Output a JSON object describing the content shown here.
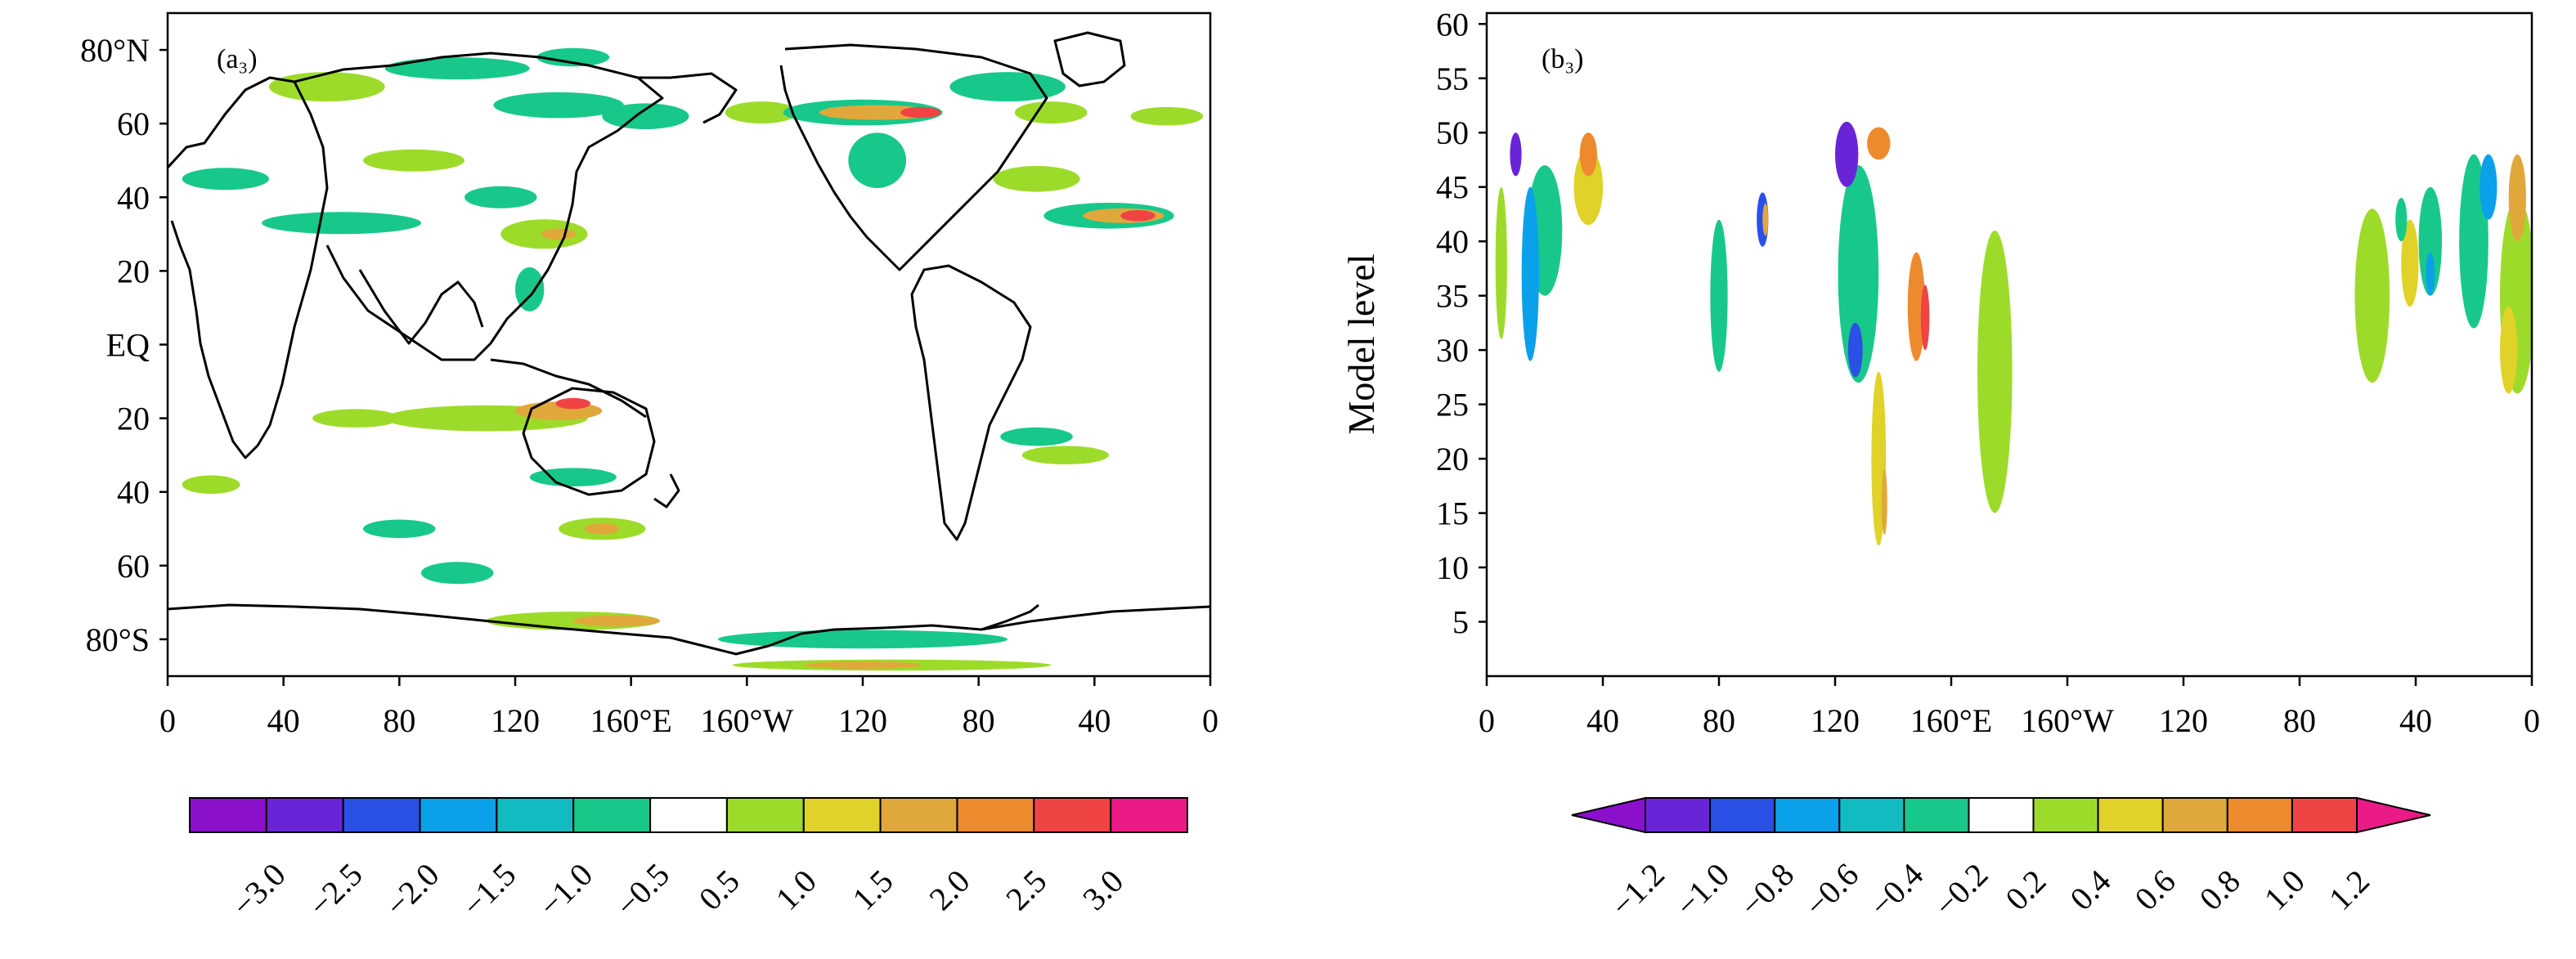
{
  "chart_data": [
    {
      "type": "heatmap",
      "panel_label": "(a₃)",
      "x_ticks": [
        "0",
        "40",
        "80",
        "120",
        "160°E",
        "160°W",
        "120",
        "80",
        "40",
        "0"
      ],
      "y_ticks": [
        "80°N",
        "60",
        "40",
        "20",
        "EQ",
        "20",
        "40",
        "60",
        "80°S"
      ],
      "xlim": [
        0,
        360
      ],
      "ylim": [
        -90,
        90
      ],
      "colorbar": {
        "ticks": [
          "−3.0",
          "−2.5",
          "−2.0",
          "−1.5",
          "−1.0",
          "−0.5",
          "0.5",
          "1.0",
          "1.5",
          "2.0",
          "2.5",
          "3.0"
        ],
        "colors": [
          "#8a10cc",
          "#6a24d8",
          "#2a50e6",
          "#0aa0ea",
          "#10bcc2",
          "#18c88a",
          "#ffffff",
          "#9ddb2a",
          "#e0d228",
          "#e0a83a",
          "#ee8a2e",
          "#f04444",
          "#ea1a86"
        ],
        "extend": "neither"
      },
      "blobs": [
        {
          "lon": 55,
          "lat": 70,
          "w": 40,
          "h": 8,
          "v": 0.9
        },
        {
          "lon": 100,
          "lat": 75,
          "w": 50,
          "h": 6,
          "v": -0.7
        },
        {
          "lon": 140,
          "lat": 78,
          "w": 25,
          "h": 5,
          "v": -0.7
        },
        {
          "lon": 135,
          "lat": 65,
          "w": 45,
          "h": 7,
          "v": -0.8
        },
        {
          "lon": 165,
          "lat": 62,
          "w": 30,
          "h": 7,
          "v": -0.7
        },
        {
          "lon": 205,
          "lat": 63,
          "w": 25,
          "h": 6,
          "v": 0.7
        },
        {
          "lon": 240,
          "lat": 63,
          "w": 55,
          "h": 7,
          "v": -0.7
        },
        {
          "lon": 245,
          "lat": 63,
          "w": 40,
          "h": 4,
          "v": 2.0
        },
        {
          "lon": 260,
          "lat": 63,
          "w": 14,
          "h": 3,
          "v": 2.6
        },
        {
          "lon": 232,
          "lat": 63,
          "w": 12,
          "h": 3,
          "v": 1.8
        },
        {
          "lon": 290,
          "lat": 70,
          "w": 40,
          "h": 8,
          "v": -0.8
        },
        {
          "lon": 305,
          "lat": 63,
          "w": 25,
          "h": 6,
          "v": 0.8
        },
        {
          "lon": 345,
          "lat": 62,
          "w": 25,
          "h": 5,
          "v": 0.7
        },
        {
          "lon": 20,
          "lat": 45,
          "w": 30,
          "h": 6,
          "v": -0.7
        },
        {
          "lon": 85,
          "lat": 50,
          "w": 35,
          "h": 6,
          "v": 0.8
        },
        {
          "lon": 60,
          "lat": 33,
          "w": 55,
          "h": 6,
          "v": -0.7
        },
        {
          "lon": 115,
          "lat": 40,
          "w": 25,
          "h": 6,
          "v": -0.7
        },
        {
          "lon": 130,
          "lat": 30,
          "w": 30,
          "h": 8,
          "v": 0.8
        },
        {
          "lon": 135,
          "lat": 30,
          "w": 12,
          "h": 3,
          "v": 2.0
        },
        {
          "lon": 125,
          "lat": 15,
          "w": 10,
          "h": 12,
          "v": -0.8
        },
        {
          "lon": 245,
          "lat": 50,
          "w": 20,
          "h": 15,
          "v": -0.7
        },
        {
          "lon": 300,
          "lat": 45,
          "w": 30,
          "h": 7,
          "v": 0.7
        },
        {
          "lon": 325,
          "lat": 35,
          "w": 45,
          "h": 7,
          "v": -0.8
        },
        {
          "lon": 330,
          "lat": 35,
          "w": 28,
          "h": 4,
          "v": 1.8
        },
        {
          "lon": 335,
          "lat": 35,
          "w": 12,
          "h": 3,
          "v": 2.6
        },
        {
          "lon": 65,
          "lat": -20,
          "w": 30,
          "h": 5,
          "v": 0.8
        },
        {
          "lon": 110,
          "lat": -20,
          "w": 70,
          "h": 7,
          "v": 0.9
        },
        {
          "lon": 135,
          "lat": -18,
          "w": 30,
          "h": 5,
          "v": 1.8
        },
        {
          "lon": 140,
          "lat": -16,
          "w": 12,
          "h": 3,
          "v": 2.8
        },
        {
          "lon": 140,
          "lat": -36,
          "w": 30,
          "h": 5,
          "v": -0.7
        },
        {
          "lon": 150,
          "lat": -50,
          "w": 30,
          "h": 6,
          "v": 0.8
        },
        {
          "lon": 150,
          "lat": -50,
          "w": 12,
          "h": 3,
          "v": 1.7
        },
        {
          "lon": 80,
          "lat": -50,
          "w": 25,
          "h": 5,
          "v": -0.7
        },
        {
          "lon": 100,
          "lat": -62,
          "w": 25,
          "h": 6,
          "v": -0.7
        },
        {
          "lon": 300,
          "lat": -25,
          "w": 25,
          "h": 5,
          "v": -0.7
        },
        {
          "lon": 310,
          "lat": -30,
          "w": 30,
          "h": 5,
          "v": 0.7
        },
        {
          "lon": 15,
          "lat": -38,
          "w": 20,
          "h": 5,
          "v": 0.7
        },
        {
          "lon": 140,
          "lat": -75,
          "w": 60,
          "h": 5,
          "v": 0.8
        },
        {
          "lon": 155,
          "lat": -75,
          "w": 30,
          "h": 3,
          "v": 1.7
        },
        {
          "lon": 240,
          "lat": -80,
          "w": 100,
          "h": 5,
          "v": -0.7
        },
        {
          "lon": 250,
          "lat": -87,
          "w": 110,
          "h": 3,
          "v": 0.7
        },
        {
          "lon": 240,
          "lat": -87,
          "w": 40,
          "h": 2,
          "v": 1.6
        }
      ]
    },
    {
      "type": "heatmap",
      "panel_label": "(b₃)",
      "x_ticks": [
        "0",
        "40",
        "80",
        "120",
        "160°E",
        "160°W",
        "120",
        "80",
        "40",
        "0"
      ],
      "y_ticks": [
        "60",
        "55",
        "50",
        "45",
        "40",
        "35",
        "30",
        "25",
        "20",
        "15",
        "10",
        "5"
      ],
      "ylabel": "Model level",
      "xlim": [
        0,
        360
      ],
      "ylim": [
        0,
        61
      ],
      "colorbar": {
        "ticks": [
          "−1.2",
          "−1.0",
          "−0.8",
          "−0.6",
          "−0.4",
          "−0.2",
          "0.2",
          "0.4",
          "0.6",
          "0.8",
          "1.0",
          "1.2"
        ],
        "colors": [
          "#8a10cc",
          "#6a24d8",
          "#2a50e6",
          "#0aa0ea",
          "#10bcc2",
          "#18c88a",
          "#ffffff",
          "#9ddb2a",
          "#e0d228",
          "#e0a83a",
          "#ee8a2e",
          "#f04444",
          "#ea1a86"
        ],
        "extend": "both"
      },
      "blobs": [
        {
          "lon": 20,
          "lat": 41,
          "w": 12,
          "h": 12,
          "v": -0.3
        },
        {
          "lon": 15,
          "lat": 37,
          "w": 6,
          "h": 16,
          "v": -0.7
        },
        {
          "lon": 10,
          "lat": 48,
          "w": 4,
          "h": 4,
          "v": -1.0
        },
        {
          "lon": 35,
          "lat": 45,
          "w": 10,
          "h": 7,
          "v": 0.5
        },
        {
          "lon": 35,
          "lat": 48,
          "w": 6,
          "h": 4,
          "v": 0.9
        },
        {
          "lon": 5,
          "lat": 38,
          "w": 4,
          "h": 14,
          "v": 0.4
        },
        {
          "lon": 80,
          "lat": 35,
          "w": 6,
          "h": 14,
          "v": -0.3
        },
        {
          "lon": 95,
          "lat": 42,
          "w": 4,
          "h": 5,
          "v": -0.8
        },
        {
          "lon": 96,
          "lat": 42,
          "w": 2,
          "h": 3,
          "v": 0.7
        },
        {
          "lon": 128,
          "lat": 37,
          "w": 14,
          "h": 20,
          "v": -0.3
        },
        {
          "lon": 124,
          "lat": 48,
          "w": 8,
          "h": 6,
          "v": -1.0
        },
        {
          "lon": 135,
          "lat": 49,
          "w": 8,
          "h": 3,
          "v": 1.0
        },
        {
          "lon": 127,
          "lat": 30,
          "w": 5,
          "h": 5,
          "v": -0.8
        },
        {
          "lon": 135,
          "lat": 20,
          "w": 5,
          "h": 16,
          "v": 0.5
        },
        {
          "lon": 137,
          "lat": 16,
          "w": 2,
          "h": 6,
          "v": 0.8
        },
        {
          "lon": 148,
          "lat": 34,
          "w": 6,
          "h": 10,
          "v": 0.9
        },
        {
          "lon": 151,
          "lat": 33,
          "w": 3,
          "h": 6,
          "v": 1.2
        },
        {
          "lon": 175,
          "lat": 28,
          "w": 12,
          "h": 26,
          "v": 0.3
        },
        {
          "lon": 305,
          "lat": 35,
          "w": 12,
          "h": 16,
          "v": 0.3
        },
        {
          "lon": 325,
          "lat": 40,
          "w": 8,
          "h": 10,
          "v": -0.3
        },
        {
          "lon": 318,
          "lat": 38,
          "w": 6,
          "h": 8,
          "v": 0.6
        },
        {
          "lon": 325,
          "lat": 37,
          "w": 3,
          "h": 4,
          "v": -0.6
        },
        {
          "lon": 340,
          "lat": 40,
          "w": 10,
          "h": 16,
          "v": -0.3
        },
        {
          "lon": 345,
          "lat": 45,
          "w": 6,
          "h": 6,
          "v": -0.6
        },
        {
          "lon": 355,
          "lat": 35,
          "w": 12,
          "h": 18,
          "v": 0.4
        },
        {
          "lon": 352,
          "lat": 30,
          "w": 6,
          "h": 8,
          "v": 0.6
        },
        {
          "lon": 355,
          "lat": 44,
          "w": 6,
          "h": 8,
          "v": 0.7
        },
        {
          "lon": 315,
          "lat": 42,
          "w": 4,
          "h": 4,
          "v": -0.3
        }
      ]
    }
  ]
}
